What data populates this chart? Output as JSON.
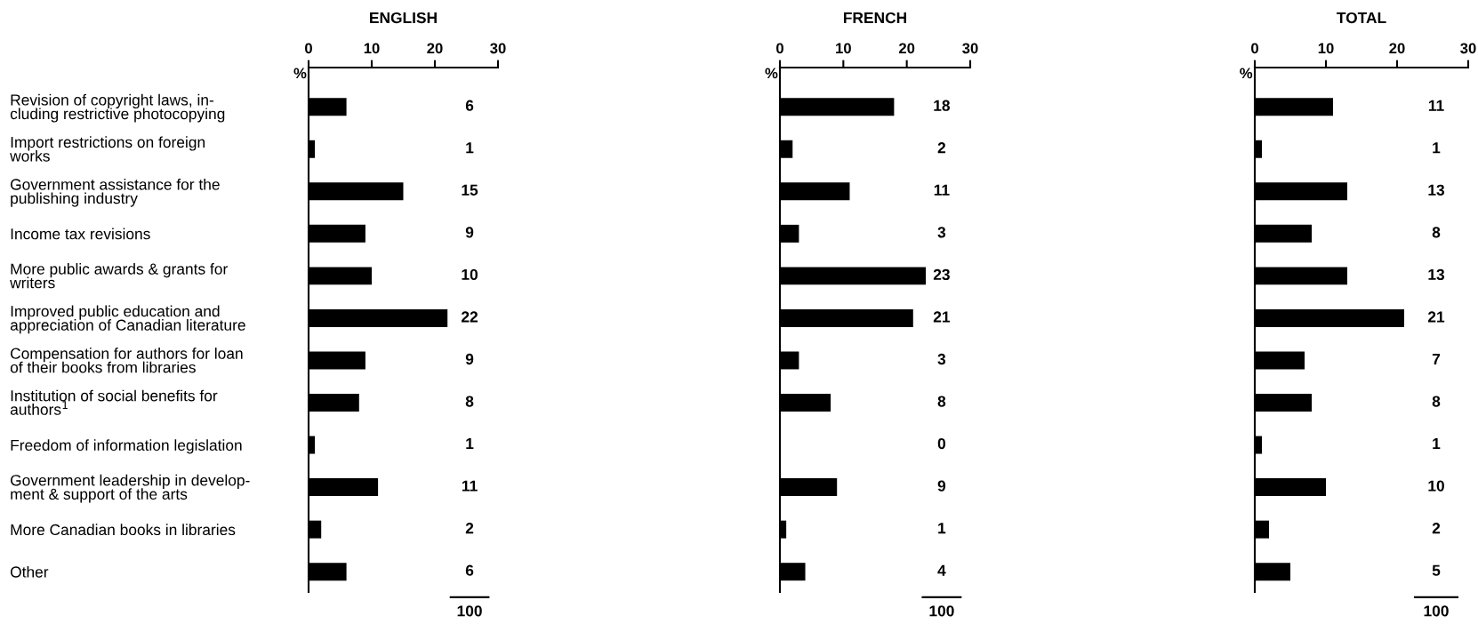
{
  "chart_data": [
    {
      "type": "bar",
      "orientation": "horizontal",
      "title": "ENGLISH",
      "xlabel": "%",
      "categories": [
        "Revision of copyright laws, in-\ncluding restrictive photocopying",
        "Import restrictions on foreign\nworks",
        "Government assistance for the\npublishing industry",
        "Income tax revisions",
        "More public awards & grants for\nwriters",
        "Improved public education and\nappreciation of Canadian literature",
        "Compensation for authors for loan\nof their books from libraries",
        "Institution of social benefits for\nauthors$^{1}$",
        "Freedom of information legislation",
        "Government leadership in develop-\nment & support of the arts",
        "More Canadian books in libraries",
        "Other"
      ],
      "values": [
        6,
        1,
        15,
        9,
        10,
        22,
        9,
        8,
        1,
        11,
        2,
        6
      ],
      "color": "#000000",
      "data_labels": true,
      "xlim": [
        0,
        30
      ],
      "xticks": [
        0,
        10,
        20,
        30
      ],
      "annotations": [
        "100"
      ]
    },
    {
      "type": "bar",
      "orientation": "horizontal",
      "title": "FRENCH",
      "xlabel": "%",
      "categories": [
        null,
        null,
        null,
        null,
        null,
        null,
        null,
        null,
        null,
        null,
        null,
        null
      ],
      "values": [
        18,
        2,
        11,
        3,
        23,
        21,
        3,
        8,
        0,
        9,
        1,
        4
      ],
      "color": "#000000",
      "data_labels": true,
      "xlim": [
        0,
        30
      ],
      "xticks": [
        0,
        10,
        20,
        30
      ],
      "annotations": [
        "100"
      ]
    },
    {
      "type": "bar",
      "orientation": "horizontal",
      "title": "TOTAL",
      "xlabel": "%",
      "categories": [
        null,
        null,
        null,
        null,
        null,
        null,
        null,
        null,
        null,
        null,
        null,
        null
      ],
      "values": [
        11,
        1,
        13,
        8,
        13,
        21,
        7,
        8,
        1,
        10,
        2,
        5
      ],
      "color": "#000000",
      "data_labels": true,
      "xlim": [
        0,
        30
      ],
      "xticks": [
        0,
        10,
        20,
        30
      ],
      "annotations": [
        "100"
      ]
    }
  ]
}
